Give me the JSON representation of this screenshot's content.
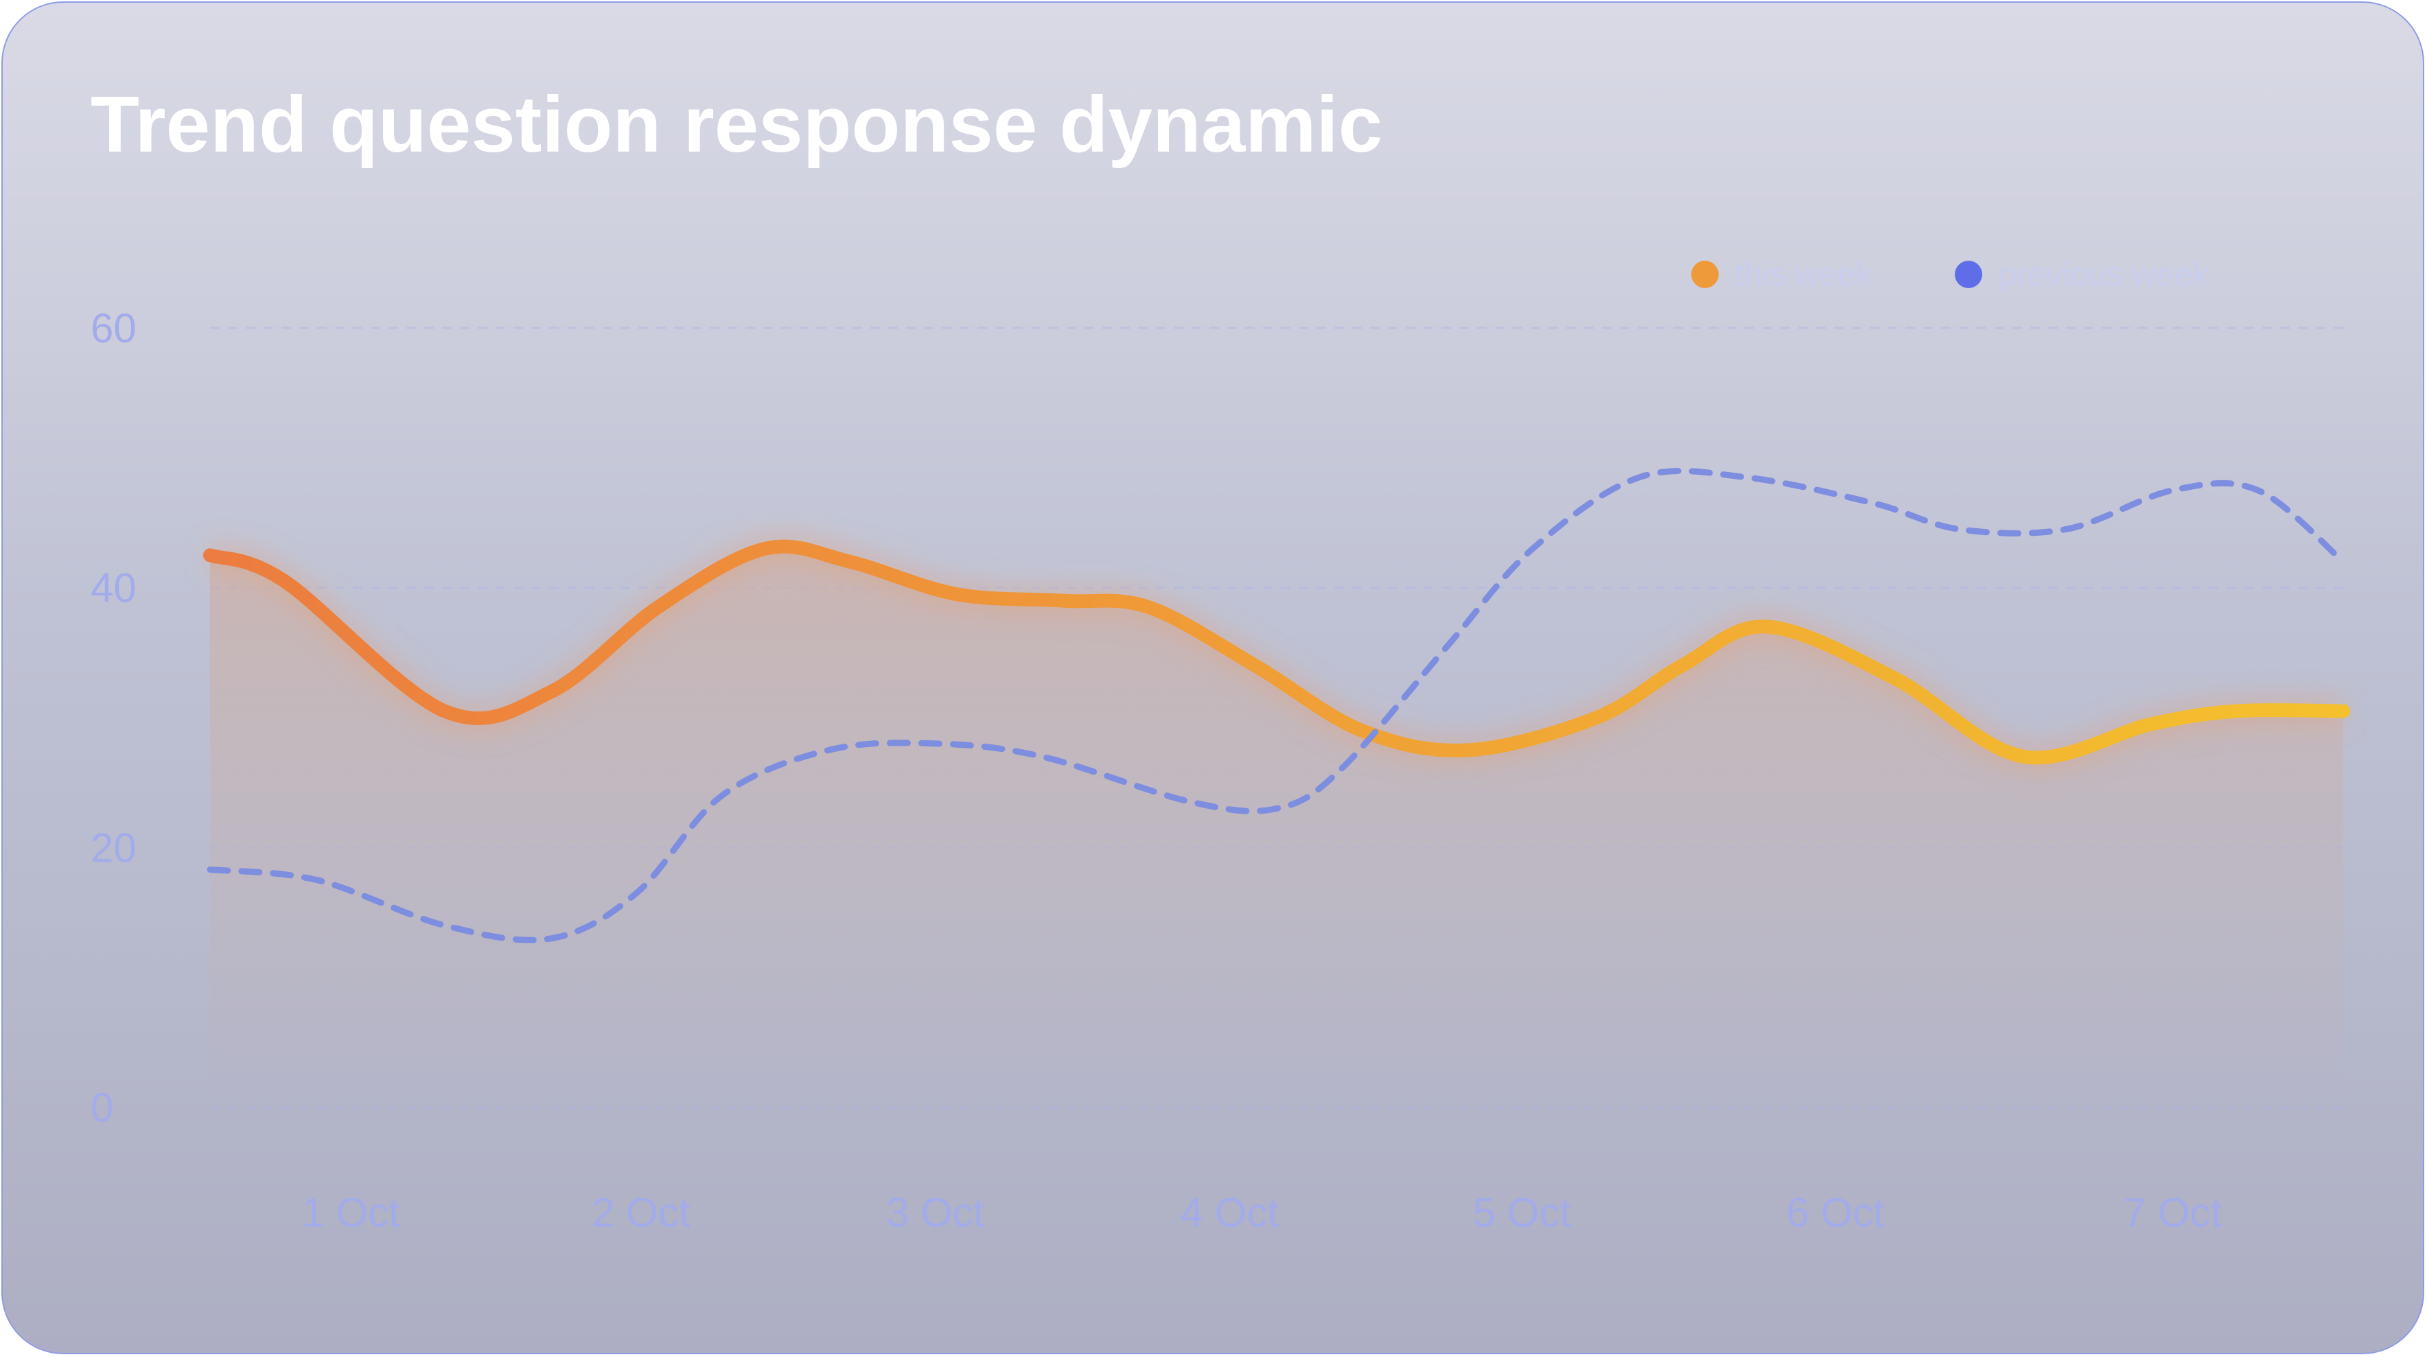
{
  "chart_data": {
    "type": "line",
    "title": "Trend question response dynamic",
    "categories": [
      "1 Oct",
      "2 Oct",
      "3 Oct",
      "4 Oct",
      "5 Oct",
      "6 Oct",
      "7 Oct"
    ],
    "yticks": [
      0,
      20,
      40,
      60
    ],
    "ylim": [
      0,
      60
    ],
    "grid": true,
    "legend_position": "top-right",
    "series": [
      {
        "name": "this week",
        "style": "solid",
        "color_start": "#ec7c3f",
        "color_end": "#f4c12d",
        "area_fill": true,
        "points": [
          {
            "x": 0.0,
            "y": 42.5
          },
          {
            "x": 0.35,
            "y": 40.5
          },
          {
            "x": 1.1,
            "y": 30.5
          },
          {
            "x": 1.6,
            "y": 32.0
          },
          {
            "x": 2.1,
            "y": 38.5
          },
          {
            "x": 2.6,
            "y": 43.0
          },
          {
            "x": 3.0,
            "y": 42.0
          },
          {
            "x": 3.5,
            "y": 39.5
          },
          {
            "x": 4.0,
            "y": 39.0
          },
          {
            "x": 4.4,
            "y": 38.5
          },
          {
            "x": 4.9,
            "y": 34.0
          },
          {
            "x": 5.4,
            "y": 29.0
          },
          {
            "x": 5.9,
            "y": 27.5
          },
          {
            "x": 6.5,
            "y": 30.0
          },
          {
            "x": 6.9,
            "y": 34.0
          },
          {
            "x": 7.3,
            "y": 37.0
          },
          {
            "x": 7.9,
            "y": 33.0
          },
          {
            "x": 8.5,
            "y": 27.0
          },
          {
            "x": 9.1,
            "y": 29.5
          },
          {
            "x": 9.5,
            "y": 30.5
          },
          {
            "x": 10.0,
            "y": 30.5
          }
        ]
      },
      {
        "name": "previous week",
        "style": "dashed",
        "color": "#7d8de0",
        "area_fill": false,
        "points": [
          {
            "x": 0.0,
            "y": 18.3
          },
          {
            "x": 0.5,
            "y": 17.5
          },
          {
            "x": 1.1,
            "y": 14.0
          },
          {
            "x": 1.6,
            "y": 13.0
          },
          {
            "x": 2.0,
            "y": 16.5
          },
          {
            "x": 2.4,
            "y": 24.0
          },
          {
            "x": 2.9,
            "y": 27.5
          },
          {
            "x": 3.4,
            "y": 28.0
          },
          {
            "x": 3.9,
            "y": 27.0
          },
          {
            "x": 4.6,
            "y": 23.5
          },
          {
            "x": 5.0,
            "y": 23.0
          },
          {
            "x": 5.3,
            "y": 26.0
          },
          {
            "x": 5.8,
            "y": 35.5
          },
          {
            "x": 6.2,
            "y": 43.0
          },
          {
            "x": 6.7,
            "y": 48.5
          },
          {
            "x": 7.2,
            "y": 48.5
          },
          {
            "x": 7.8,
            "y": 46.5
          },
          {
            "x": 8.2,
            "y": 44.5
          },
          {
            "x": 8.7,
            "y": 44.5
          },
          {
            "x": 9.2,
            "y": 47.5
          },
          {
            "x": 9.6,
            "y": 47.5
          },
          {
            "x": 10.0,
            "y": 42.0
          }
        ]
      }
    ],
    "x_label_positions": [
      0.66,
      2.02,
      3.4,
      4.78,
      6.15,
      7.62,
      9.2
    ],
    "x_domain": [
      0,
      10
    ]
  },
  "legend": {
    "items": [
      {
        "label": "this week",
        "color": "#ee9a3a"
      },
      {
        "label": "previous week",
        "color": "#5f6ee8"
      }
    ]
  }
}
